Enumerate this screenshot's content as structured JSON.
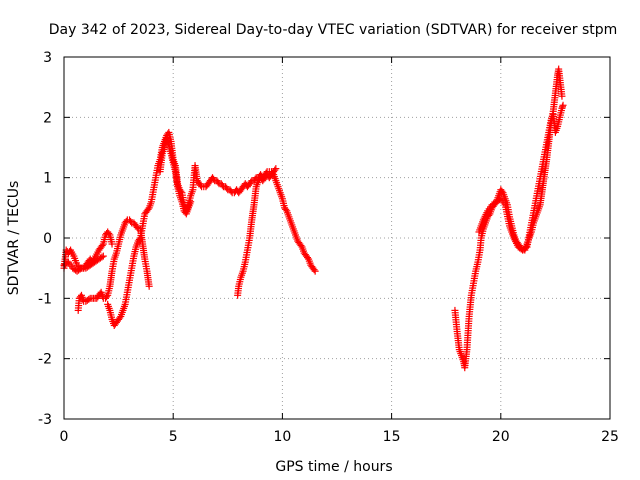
{
  "chart_data": {
    "type": "scatter",
    "title": "Day 342 of 2023, Sidereal Day-to-day VTEC variation (SDTVAR) for receiver stpm",
    "xlabel": "GPS time / hours",
    "ylabel": "SDTVAR / TECUs",
    "xlim": [
      0,
      25
    ],
    "ylim": [
      -3,
      3
    ],
    "xticks": [
      "0",
      "5",
      "10",
      "15",
      "20",
      "25"
    ],
    "yticks": [
      "-3",
      "-2",
      "-1",
      "0",
      "1",
      "2",
      "3"
    ],
    "grid": true,
    "marker": "plus",
    "color": "#ff0000",
    "series": [
      {
        "segments": [
          [
            [
              0.0,
              -0.5
            ],
            [
              0.1,
              -0.2
            ],
            [
              0.2,
              -0.25
            ],
            [
              0.3,
              -0.2
            ],
            [
              0.45,
              -0.3
            ],
            [
              0.6,
              -0.45
            ],
            [
              0.75,
              -0.5
            ],
            [
              0.9,
              -0.5
            ],
            [
              1.0,
              -0.45
            ],
            [
              1.1,
              -0.4
            ],
            [
              1.2,
              -0.35
            ],
            [
              1.3,
              -0.4
            ],
            [
              1.45,
              -0.3
            ],
            [
              1.6,
              -0.2
            ],
            [
              1.7,
              -0.15
            ],
            [
              1.8,
              -0.1
            ],
            [
              1.9,
              0.05
            ],
            [
              2.0,
              0.1
            ],
            [
              2.1,
              0.05
            ],
            [
              2.2,
              -0.1
            ]
          ],
          [
            [
              0.65,
              -1.2
            ],
            [
              0.7,
              -1.0
            ],
            [
              0.8,
              -0.95
            ],
            [
              0.9,
              -1.05
            ],
            [
              1.0,
              -1.05
            ],
            [
              1.2,
              -1.0
            ],
            [
              1.35,
              -1.0
            ],
            [
              1.5,
              -1.0
            ],
            [
              1.6,
              -0.95
            ],
            [
              1.7,
              -0.9
            ],
            [
              1.8,
              -1.0
            ],
            [
              1.9,
              -1.0
            ],
            [
              2.0,
              -0.95
            ],
            [
              2.1,
              -0.8
            ],
            [
              2.2,
              -0.55
            ],
            [
              2.3,
              -0.35
            ],
            [
              2.4,
              -0.25
            ],
            [
              2.5,
              -0.1
            ],
            [
              2.6,
              0.05
            ],
            [
              2.7,
              0.15
            ],
            [
              2.8,
              0.25
            ],
            [
              2.9,
              0.3
            ],
            [
              3.0,
              0.3
            ],
            [
              3.1,
              0.25
            ],
            [
              3.2,
              0.25
            ],
            [
              3.3,
              0.2
            ],
            [
              3.4,
              0.15
            ],
            [
              3.5,
              0.15
            ],
            [
              3.6,
              -0.1
            ],
            [
              3.7,
              -0.35
            ],
            [
              3.8,
              -0.55
            ],
            [
              3.9,
              -0.8
            ]
          ],
          [
            [
              0.0,
              -0.45
            ],
            [
              0.2,
              -0.4
            ],
            [
              0.4,
              -0.5
            ],
            [
              0.6,
              -0.55
            ],
            [
              0.8,
              -0.5
            ],
            [
              1.0,
              -0.5
            ],
            [
              1.2,
              -0.45
            ],
            [
              1.4,
              -0.4
            ],
            [
              1.6,
              -0.35
            ],
            [
              1.8,
              -0.3
            ]
          ],
          [
            [
              2.0,
              -1.1
            ],
            [
              2.1,
              -1.2
            ],
            [
              2.2,
              -1.35
            ],
            [
              2.3,
              -1.45
            ],
            [
              2.4,
              -1.4
            ],
            [
              2.5,
              -1.35
            ],
            [
              2.6,
              -1.3
            ],
            [
              2.7,
              -1.2
            ],
            [
              2.8,
              -1.1
            ],
            [
              2.9,
              -0.9
            ],
            [
              3.0,
              -0.7
            ],
            [
              3.1,
              -0.5
            ],
            [
              3.2,
              -0.3
            ],
            [
              3.3,
              -0.15
            ],
            [
              3.4,
              -0.05
            ],
            [
              3.5,
              0.0
            ],
            [
              3.6,
              0.2
            ],
            [
              3.7,
              0.4
            ],
            [
              3.8,
              0.45
            ],
            [
              3.9,
              0.5
            ],
            [
              4.0,
              0.6
            ],
            [
              4.1,
              0.8
            ],
            [
              4.2,
              1.0
            ],
            [
              4.3,
              1.2
            ],
            [
              4.4,
              1.3
            ],
            [
              4.5,
              1.5
            ],
            [
              4.6,
              1.6
            ],
            [
              4.7,
              1.7
            ],
            [
              4.8,
              1.75
            ],
            [
              4.9,
              1.6
            ],
            [
              5.0,
              1.3
            ],
            [
              5.1,
              1.2
            ],
            [
              5.2,
              0.9
            ],
            [
              5.3,
              0.8
            ],
            [
              5.4,
              0.75
            ],
            [
              5.5,
              0.55
            ],
            [
              5.6,
              0.45
            ],
            [
              5.7,
              0.55
            ],
            [
              5.8,
              0.7
            ],
            [
              5.9,
              0.8
            ],
            [
              6.0,
              1.2
            ],
            [
              6.1,
              0.95
            ],
            [
              6.2,
              0.9
            ],
            [
              6.3,
              0.85
            ],
            [
              6.4,
              0.85
            ],
            [
              6.5,
              0.85
            ],
            [
              6.6,
              0.9
            ],
            [
              6.7,
              0.95
            ],
            [
              6.8,
              1.0
            ],
            [
              6.9,
              0.95
            ],
            [
              7.0,
              0.95
            ],
            [
              7.1,
              0.9
            ],
            [
              7.2,
              0.9
            ],
            [
              7.3,
              0.85
            ],
            [
              7.4,
              0.85
            ],
            [
              7.5,
              0.8
            ],
            [
              7.6,
              0.8
            ],
            [
              7.7,
              0.75
            ],
            [
              7.8,
              0.75
            ],
            [
              7.9,
              0.8
            ],
            [
              8.0,
              0.75
            ],
            [
              8.1,
              0.8
            ],
            [
              8.2,
              0.85
            ],
            [
              8.3,
              0.9
            ],
            [
              8.4,
              0.85
            ],
            [
              8.5,
              0.9
            ],
            [
              8.6,
              0.95
            ],
            [
              8.7,
              0.95
            ],
            [
              8.8,
              1.0
            ],
            [
              8.9,
              1.0
            ],
            [
              9.0,
              1.05
            ],
            [
              9.1,
              1.0
            ],
            [
              9.2,
              1.05
            ],
            [
              9.3,
              1.1
            ],
            [
              9.4,
              1.1
            ],
            [
              9.5,
              1.1
            ],
            [
              9.6,
              1.05
            ],
            [
              9.7,
              0.95
            ],
            [
              9.8,
              0.85
            ],
            [
              9.9,
              0.75
            ],
            [
              10.0,
              0.65
            ],
            [
              10.1,
              0.5
            ],
            [
              10.2,
              0.45
            ],
            [
              10.3,
              0.35
            ],
            [
              10.4,
              0.25
            ],
            [
              10.5,
              0.15
            ],
            [
              10.6,
              0.05
            ],
            [
              10.7,
              -0.05
            ],
            [
              10.8,
              -0.1
            ],
            [
              10.9,
              -0.15
            ],
            [
              11.0,
              -0.25
            ],
            [
              11.1,
              -0.3
            ],
            [
              11.2,
              -0.35
            ],
            [
              11.3,
              -0.45
            ],
            [
              11.4,
              -0.5
            ],
            [
              11.5,
              -0.55
            ]
          ],
          [
            [
              4.4,
              1.1
            ],
            [
              4.5,
              1.4
            ],
            [
              4.6,
              1.5
            ],
            [
              4.7,
              1.65
            ],
            [
              4.8,
              1.55
            ],
            [
              4.9,
              1.4
            ],
            [
              5.0,
              1.25
            ],
            [
              5.1,
              1.1
            ],
            [
              5.2,
              0.85
            ],
            [
              5.3,
              0.7
            ],
            [
              5.4,
              0.6
            ],
            [
              5.5,
              0.45
            ],
            [
              5.6,
              0.4
            ],
            [
              5.7,
              0.5
            ],
            [
              5.8,
              0.6
            ]
          ],
          [
            [
              7.95,
              -0.95
            ],
            [
              8.0,
              -0.8
            ],
            [
              8.1,
              -0.65
            ],
            [
              8.2,
              -0.55
            ],
            [
              8.3,
              -0.4
            ],
            [
              8.4,
              -0.2
            ],
            [
              8.5,
              0.0
            ],
            [
              8.6,
              0.3
            ],
            [
              8.7,
              0.55
            ],
            [
              8.8,
              0.85
            ],
            [
              8.9,
              0.95
            ],
            [
              9.0,
              1.0
            ],
            [
              9.1,
              0.95
            ],
            [
              9.2,
              1.0
            ],
            [
              9.3,
              1.05
            ],
            [
              9.4,
              1.0
            ],
            [
              9.5,
              1.05
            ],
            [
              9.6,
              1.1
            ],
            [
              9.7,
              1.15
            ]
          ],
          [
            [
              17.9,
              -1.2
            ],
            [
              18.0,
              -1.55
            ],
            [
              18.1,
              -1.85
            ],
            [
              18.2,
              -1.95
            ],
            [
              18.3,
              -2.05
            ],
            [
              18.35,
              -2.15
            ],
            [
              18.45,
              -1.85
            ],
            [
              18.55,
              -1.3
            ],
            [
              18.65,
              -0.95
            ],
            [
              18.75,
              -0.75
            ],
            [
              18.85,
              -0.55
            ],
            [
              18.95,
              -0.4
            ],
            [
              19.05,
              -0.2
            ],
            [
              19.1,
              0.0
            ],
            [
              19.2,
              0.15
            ],
            [
              19.3,
              0.25
            ],
            [
              19.4,
              0.35
            ],
            [
              19.5,
              0.4
            ],
            [
              19.6,
              0.5
            ],
            [
              19.7,
              0.55
            ],
            [
              19.8,
              0.6
            ],
            [
              19.9,
              0.7
            ],
            [
              20.0,
              0.8
            ],
            [
              20.1,
              0.75
            ],
            [
              20.2,
              0.65
            ],
            [
              20.3,
              0.55
            ],
            [
              20.4,
              0.35
            ],
            [
              20.5,
              0.2
            ],
            [
              20.6,
              0.05
            ],
            [
              20.7,
              -0.05
            ],
            [
              20.8,
              -0.1
            ],
            [
              20.9,
              -0.15
            ],
            [
              21.0,
              -0.2
            ],
            [
              21.1,
              -0.2
            ],
            [
              21.2,
              -0.1
            ],
            [
              21.3,
              0.0
            ],
            [
              21.4,
              0.1
            ],
            [
              21.5,
              0.25
            ],
            [
              21.6,
              0.35
            ],
            [
              21.7,
              0.45
            ],
            [
              21.8,
              0.55
            ],
            [
              21.9,
              0.8
            ],
            [
              22.0,
              1.05
            ],
            [
              22.1,
              1.3
            ],
            [
              22.2,
              1.6
            ],
            [
              22.3,
              1.9
            ],
            [
              22.4,
              2.1
            ],
            [
              22.5,
              2.4
            ],
            [
              22.6,
              2.7
            ],
            [
              22.65,
              2.8
            ],
            [
              22.7,
              2.65
            ],
            [
              22.75,
              2.5
            ],
            [
              22.8,
              2.35
            ]
          ],
          [
            [
              19.0,
              0.1
            ],
            [
              19.2,
              0.3
            ],
            [
              19.4,
              0.45
            ],
            [
              19.6,
              0.55
            ],
            [
              19.8,
              0.6
            ],
            [
              20.0,
              0.65
            ],
            [
              20.2,
              0.55
            ],
            [
              20.4,
              0.2
            ],
            [
              20.6,
              0.0
            ],
            [
              20.8,
              -0.15
            ],
            [
              21.0,
              -0.2
            ],
            [
              21.2,
              -0.15
            ],
            [
              22.3,
              1.95
            ],
            [
              22.4,
              2.05
            ],
            [
              22.5,
              1.75
            ],
            [
              22.6,
              1.85
            ],
            [
              22.7,
              2.0
            ],
            [
              22.8,
              2.15
            ],
            [
              22.85,
              2.2
            ]
          ]
        ]
      }
    ]
  }
}
